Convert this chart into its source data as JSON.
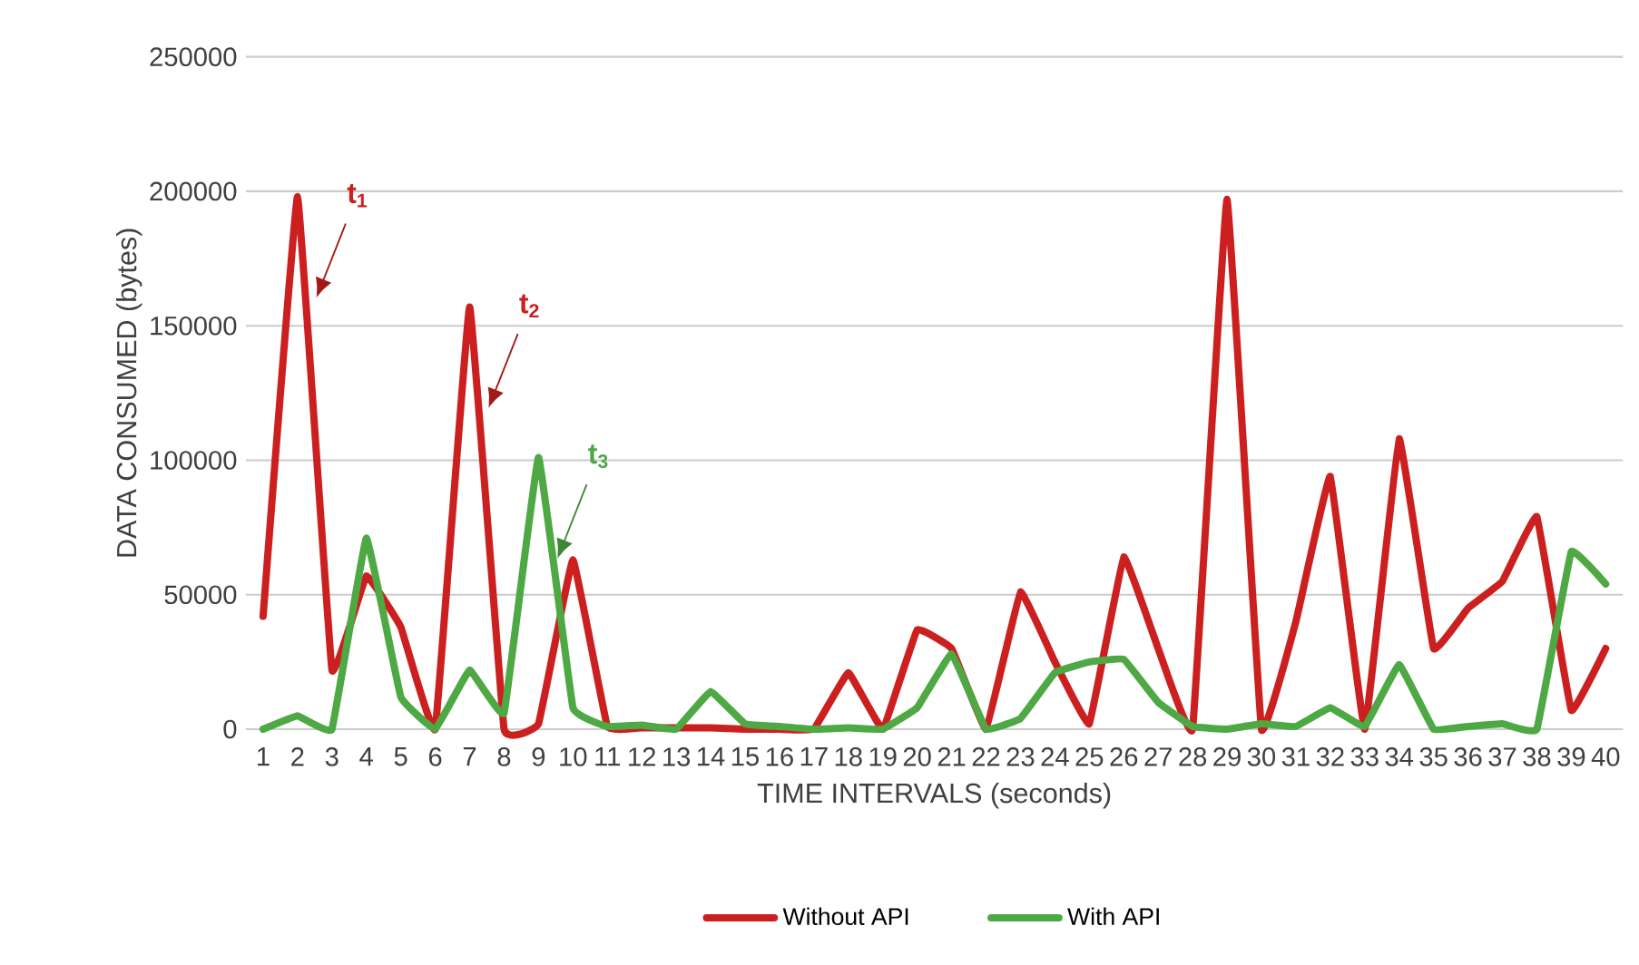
{
  "chart_data": {
    "type": "line",
    "xlabel": "TIME INTERVALS (seconds)",
    "ylabel": "DATA CONSUMED (bytes)",
    "categories": [
      "1",
      "2",
      "3",
      "4",
      "5",
      "6",
      "7",
      "8",
      "9",
      "10",
      "11",
      "12",
      "13",
      "14",
      "15",
      "16",
      "17",
      "18",
      "19",
      "20",
      "21",
      "22",
      "23",
      "24",
      "25",
      "26",
      "27",
      "28",
      "29",
      "30",
      "31",
      "32",
      "33",
      "34",
      "35",
      "36",
      "37",
      "38",
      "39",
      "40"
    ],
    "series": [
      {
        "name": "Without API",
        "color": "#cc1f1f",
        "values": [
          42000,
          198000,
          22000,
          57000,
          38000,
          0,
          157000,
          0,
          2000,
          63000,
          1000,
          500,
          500,
          500,
          0,
          0,
          0,
          21000,
          0,
          37000,
          30000,
          0,
          51000,
          25000,
          2000,
          64000,
          30000,
          0,
          197000,
          0,
          40000,
          94000,
          0,
          108000,
          30000,
          45000,
          55000,
          79000,
          7000,
          30000
        ]
      },
      {
        "name": "With API",
        "color": "#4ea843",
        "values": [
          0,
          5000,
          0,
          71000,
          12000,
          0,
          22000,
          6000,
          101000,
          8000,
          1000,
          1500,
          0,
          14000,
          2000,
          1000,
          0,
          500,
          0,
          8000,
          28000,
          0,
          4000,
          21000,
          25000,
          26000,
          10000,
          1000,
          0,
          2000,
          1000,
          8000,
          1000,
          24000,
          0,
          1000,
          2000,
          0,
          66000,
          54000
        ]
      }
    ],
    "annotations": [
      {
        "text": "t$_{1}$",
        "x": "2",
        "y": 198000
      },
      {
        "text": "t$_{2}$",
        "x": "7",
        "y": 157000
      },
      {
        "text": "t$_{3}$",
        "x": "9",
        "y": 101000
      }
    ],
    "ylim": [
      0,
      250000
    ],
    "yticks": [
      0,
      50000,
      100000,
      150000,
      200000,
      250000
    ],
    "grid": "y",
    "legend": "bottom"
  }
}
